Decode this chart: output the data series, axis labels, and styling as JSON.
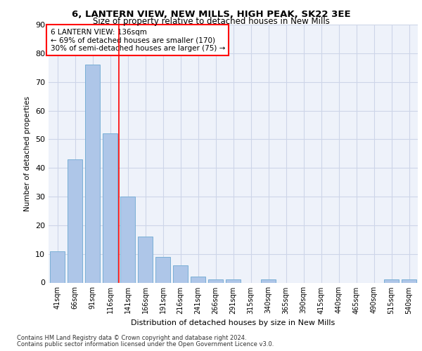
{
  "title": "6, LANTERN VIEW, NEW MILLS, HIGH PEAK, SK22 3EE",
  "subtitle": "Size of property relative to detached houses in New Mills",
  "xlabel": "Distribution of detached houses by size in New Mills",
  "ylabel": "Number of detached properties",
  "categories": [
    "41sqm",
    "66sqm",
    "91sqm",
    "116sqm",
    "141sqm",
    "166sqm",
    "191sqm",
    "216sqm",
    "241sqm",
    "266sqm",
    "291sqm",
    "315sqm",
    "340sqm",
    "365sqm",
    "390sqm",
    "415sqm",
    "440sqm",
    "465sqm",
    "490sqm",
    "515sqm",
    "540sqm"
  ],
  "values": [
    11,
    43,
    76,
    52,
    30,
    16,
    9,
    6,
    2,
    1,
    1,
    0,
    1,
    0,
    0,
    0,
    0,
    0,
    0,
    1,
    1
  ],
  "bar_color": "#aec6e8",
  "bar_edge_color": "#7aafd6",
  "grid_color": "#cdd5e8",
  "background_color": "#eef2fa",
  "red_line_x": 3.5,
  "annotation_box": {
    "line1": "6 LANTERN VIEW: 136sqm",
    "line2": "← 69% of detached houses are smaller (170)",
    "line3": "30% of semi-detached houses are larger (75) →"
  },
  "ylim": [
    0,
    90
  ],
  "yticks": [
    0,
    10,
    20,
    30,
    40,
    50,
    60,
    70,
    80,
    90
  ],
  "footer_line1": "Contains HM Land Registry data © Crown copyright and database right 2024.",
  "footer_line2": "Contains public sector information licensed under the Open Government Licence v3.0."
}
